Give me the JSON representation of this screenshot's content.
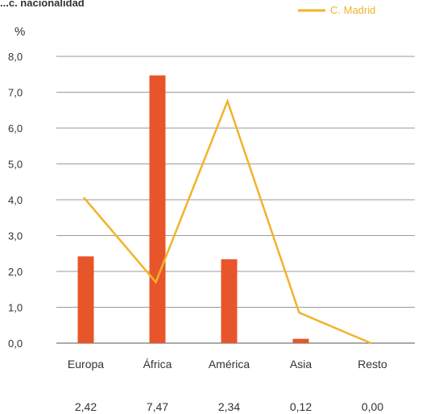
{
  "chart_data": {
    "type": "bar",
    "title": "...c. nacionalidad",
    "ylabel": "%",
    "ylim": [
      0,
      8
    ],
    "yticks": [
      "0,0",
      "1,0",
      "2,0",
      "3,0",
      "4,0",
      "5,0",
      "6,0",
      "7,0",
      "8,0"
    ],
    "ytick_values": [
      0,
      1,
      2,
      3,
      4,
      5,
      6,
      7,
      8
    ],
    "grid": true,
    "legend_position": "top-right",
    "categories": [
      "Europa",
      "África",
      "América",
      "Asia",
      "Resto"
    ],
    "value_labels": [
      "2,42",
      "7,47",
      "2,34",
      "0,12",
      "0,00"
    ],
    "series": [
      {
        "kind": "bar",
        "values": [
          2.42,
          7.47,
          2.34,
          0.12,
          0.0
        ],
        "color": "#e8552a"
      },
      {
        "kind": "line",
        "name": "C. Madrid",
        "values": [
          4.05,
          1.7,
          6.75,
          0.85,
          0.0
        ],
        "color": "#f0b429"
      }
    ]
  }
}
